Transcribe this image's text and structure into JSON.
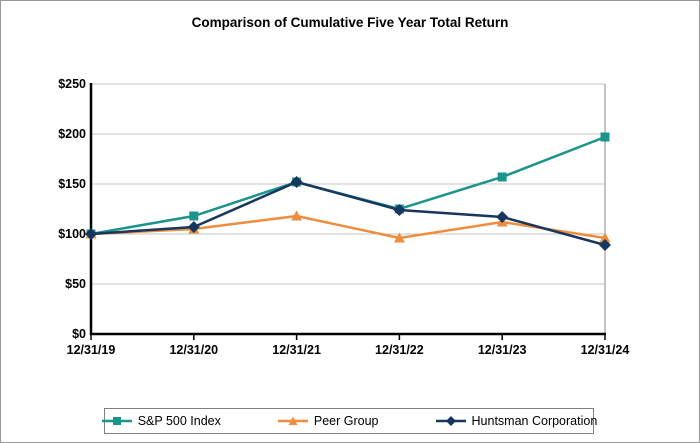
{
  "title": "Comparison of Cumulative Five Year Total Return",
  "colors": {
    "sp500": "#1B948C",
    "peer_group": "#EF8D3E",
    "huntsman": "#17375E",
    "gridline": "#C6C6C6",
    "axis": "#000000",
    "plot_border": "#B0B0B0"
  },
  "chart_data": {
    "type": "line",
    "title": "Comparison of Cumulative Five Year Total Return",
    "categories": [
      "12/31/19",
      "12/31/20",
      "12/31/21",
      "12/31/22",
      "12/31/23",
      "12/31/24"
    ],
    "series": [
      {
        "name": "S&P 500 Index",
        "marker": "square",
        "color": "#1B948C",
        "values": [
          100,
          118,
          152,
          125,
          157,
          197
        ]
      },
      {
        "name": "Peer Group",
        "marker": "triangle",
        "color": "#EF8D3E",
        "values": [
          100,
          105,
          118,
          96,
          112,
          96
        ]
      },
      {
        "name": "Huntsman Corporation",
        "marker": "diamond",
        "color": "#17375E",
        "values": [
          100,
          107,
          152,
          124,
          117,
          89
        ]
      }
    ],
    "yticks": [
      {
        "label": "$0",
        "value": 0
      },
      {
        "label": "$50",
        "value": 50
      },
      {
        "label": "$100",
        "value": 100
      },
      {
        "label": "$150",
        "value": 150
      },
      {
        "label": "$200",
        "value": 200
      },
      {
        "label": "$250",
        "value": 250
      }
    ],
    "ylim": [
      0,
      250
    ],
    "xlabel": "",
    "ylabel": "",
    "grid": true,
    "legend_position": "bottom"
  }
}
